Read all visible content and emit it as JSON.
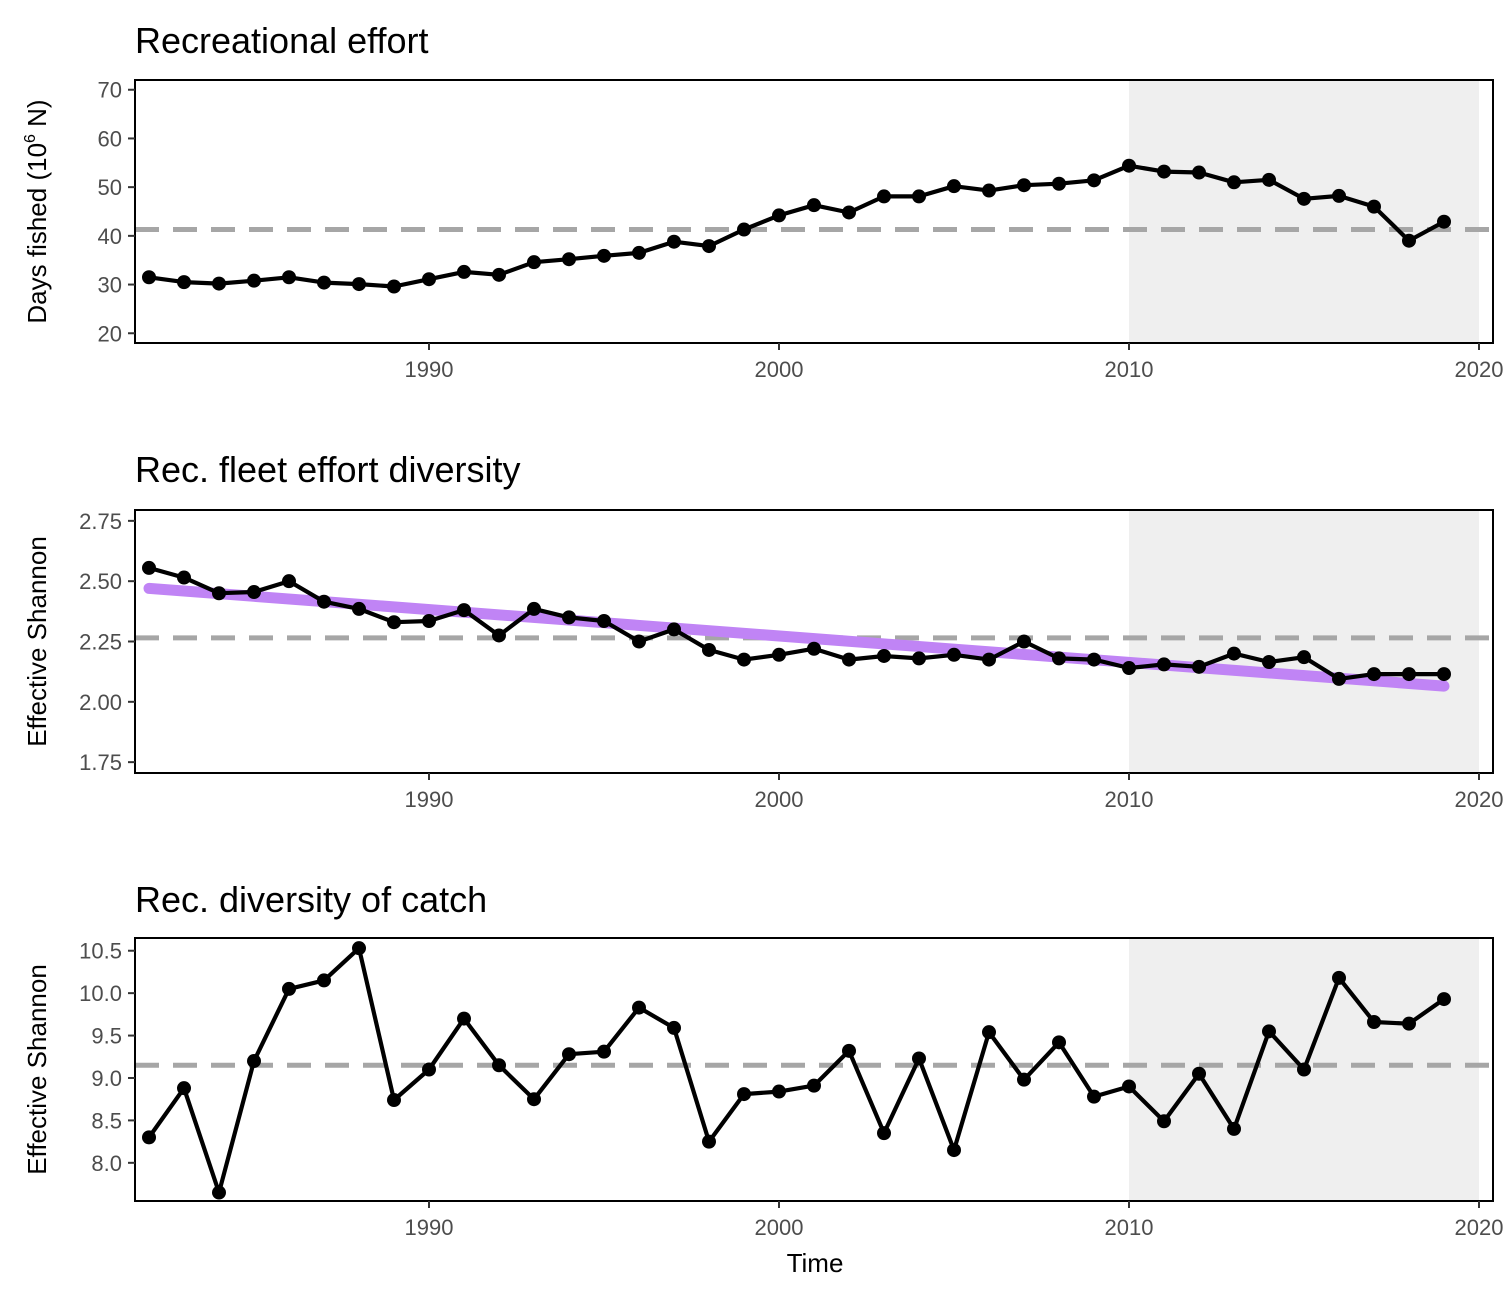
{
  "colors": {
    "line": "#000000",
    "shade": "#efefef",
    "reference": "#a6a6a6",
    "trend": "#c084f5",
    "frame": "#000000",
    "tick_label": "#4d4d4d"
  },
  "shared": {
    "xlabel": "Time",
    "xlim": [
      1981.6,
      2020.4
    ],
    "xticks": [
      1990,
      2000,
      2010,
      2020
    ],
    "shaded_period": [
      2010,
      2020
    ]
  },
  "chart_data": [
    {
      "type": "line",
      "title": "Recreational effort",
      "ylabel": "Days fished (10",
      "ylabel_sup": "6",
      "ylabel_tail": " N)",
      "ylim": [
        18,
        72
      ],
      "yticks": [
        "20",
        "30",
        "40",
        "50",
        "60",
        "70"
      ],
      "reference_line": 41.3,
      "x": [
        1982,
        1983,
        1984,
        1985,
        1986,
        1987,
        1988,
        1989,
        1990,
        1991,
        1992,
        1993,
        1994,
        1995,
        1996,
        1997,
        1998,
        1999,
        2000,
        2001,
        2002,
        2003,
        2004,
        2005,
        2006,
        2007,
        2008,
        2009,
        2010,
        2011,
        2012,
        2013,
        2014,
        2015,
        2016,
        2017,
        2018,
        2019
      ],
      "values": [
        31.5,
        30.5,
        30.2,
        30.8,
        31.5,
        30.4,
        30.1,
        29.6,
        31.1,
        32.6,
        32.0,
        34.6,
        35.2,
        35.9,
        36.5,
        38.8,
        37.9,
        41.3,
        44.2,
        46.3,
        44.8,
        48.1,
        48.1,
        50.2,
        49.3,
        50.4,
        50.7,
        51.4,
        54.4,
        53.2,
        53.0,
        51.0,
        51.5,
        47.6,
        48.2,
        46.0,
        39.0,
        42.9
      ]
    },
    {
      "type": "line",
      "title": "Rec. fleet effort diversity",
      "ylabel": "Effective Shannon",
      "ylim": [
        1.705,
        2.795
      ],
      "yticks": [
        "1.75",
        "2.00",
        "2.25",
        "2.50",
        "2.75"
      ],
      "reference_line": 2.265,
      "trend_line": {
        "x": [
          1982,
          2019
        ],
        "y": [
          2.47,
          2.065
        ]
      },
      "x": [
        1982,
        1983,
        1984,
        1985,
        1986,
        1987,
        1988,
        1989,
        1990,
        1991,
        1992,
        1993,
        1994,
        1995,
        1996,
        1997,
        1998,
        1999,
        2000,
        2001,
        2002,
        2003,
        2004,
        2005,
        2006,
        2007,
        2008,
        2009,
        2010,
        2011,
        2012,
        2013,
        2014,
        2015,
        2016,
        2017,
        2018,
        2019
      ],
      "values": [
        2.555,
        2.515,
        2.45,
        2.455,
        2.5,
        2.415,
        2.385,
        2.33,
        2.335,
        2.38,
        2.275,
        2.385,
        2.35,
        2.335,
        2.25,
        2.3,
        2.215,
        2.175,
        2.195,
        2.22,
        2.175,
        2.19,
        2.18,
        2.195,
        2.175,
        2.25,
        2.18,
        2.175,
        2.14,
        2.155,
        2.145,
        2.2,
        2.165,
        2.185,
        2.095,
        2.115,
        2.115,
        2.115
      ]
    },
    {
      "type": "line",
      "title": "Rec. diversity of catch",
      "ylabel": "Effective Shannon",
      "ylim": [
        7.55,
        10.65
      ],
      "yticks": [
        "8.0",
        "8.5",
        "9.0",
        "9.5",
        "10.0",
        "10.5"
      ],
      "reference_line": 9.15,
      "x": [
        1982,
        1983,
        1984,
        1985,
        1986,
        1987,
        1988,
        1989,
        1990,
        1991,
        1992,
        1993,
        1994,
        1995,
        1996,
        1997,
        1998,
        1999,
        2000,
        2001,
        2002,
        2003,
        2004,
        2005,
        2006,
        2007,
        2008,
        2009,
        2010,
        2011,
        2012,
        2013,
        2014,
        2015,
        2016,
        2017,
        2018,
        2019
      ],
      "values": [
        8.3,
        8.88,
        7.65,
        9.2,
        10.05,
        10.15,
        10.53,
        8.74,
        9.1,
        9.7,
        9.15,
        8.75,
        9.28,
        9.31,
        9.83,
        9.59,
        8.25,
        8.81,
        8.84,
        8.91,
        9.32,
        8.35,
        9.23,
        8.15,
        9.54,
        8.98,
        9.42,
        8.78,
        8.9,
        8.49,
        9.05,
        8.4,
        9.55,
        9.1,
        10.18,
        9.66,
        9.64,
        9.93
      ]
    }
  ]
}
